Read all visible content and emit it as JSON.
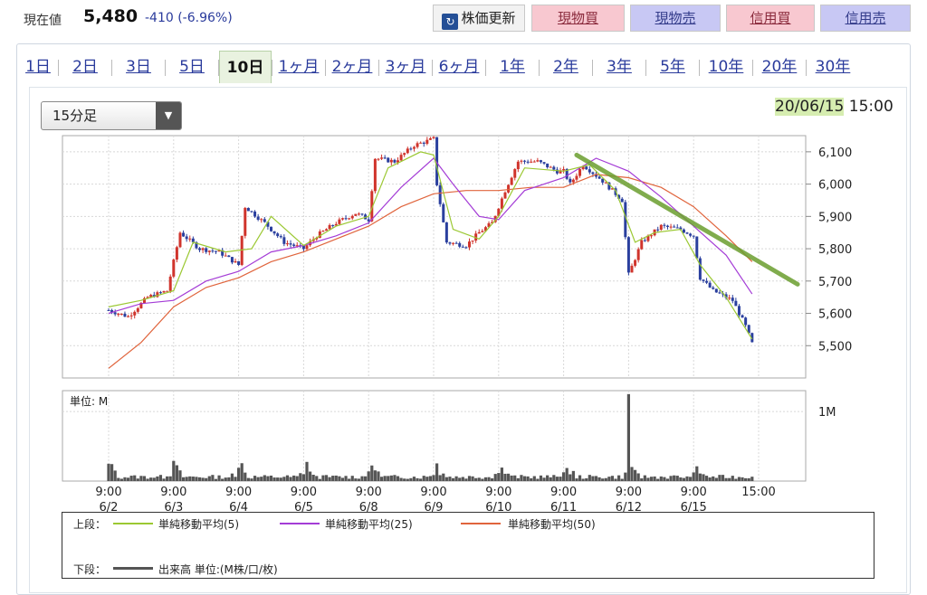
{
  "header": {
    "price_label": "現在値",
    "price_value": "5,480",
    "price_change": "-410 (-6.96%)",
    "refresh_label": "株価更新",
    "buttons": [
      "現物買",
      "現物売",
      "信用買",
      "信用売"
    ]
  },
  "tabs": [
    "1日",
    "2日",
    "3日",
    "5日",
    "10日",
    "1ヶ月",
    "2ヶ月",
    "3ヶ月",
    "6ヶ月",
    "1年",
    "2年",
    "3年",
    "5年",
    "10年",
    "20年",
    "30年"
  ],
  "selected_tab": "10日",
  "interval_select": "15分足",
  "datetime": {
    "date": "20/06/15",
    "time": "15:00"
  },
  "colors": {
    "up_candle": "#d0342c",
    "down_candle": "#2a3f9e",
    "sma5": "#9bc832",
    "sma25": "#a43cd6",
    "sma50": "#e0643c",
    "volume": "#555555",
    "trendline": "#6b9e2e"
  },
  "chart_data": [
    {
      "type": "candlestick",
      "x_ticks": [
        {
          "time": "9:00",
          "date": "6/2"
        },
        {
          "time": "9:00",
          "date": "6/3"
        },
        {
          "time": "9:00",
          "date": "6/4"
        },
        {
          "time": "9:00",
          "date": "6/5"
        },
        {
          "time": "9:00",
          "date": "6/8"
        },
        {
          "time": "9:00",
          "date": "6/9"
        },
        {
          "time": "9:00",
          "date": "6/10"
        },
        {
          "time": "9:00",
          "date": "6/11"
        },
        {
          "time": "9:00",
          "date": "6/12"
        },
        {
          "time": "9:00",
          "date": "6/15"
        },
        {
          "time": "15:00",
          "date": ""
        }
      ],
      "y_ticks": [
        "6,100",
        "6,000",
        "5,900",
        "5,800",
        "5,700",
        "5,600",
        "5,500"
      ],
      "y_tick_values": [
        6100,
        6000,
        5900,
        5800,
        5700,
        5600,
        5500
      ],
      "ylim": [
        5400,
        6150
      ],
      "close_path": [
        [
          0,
          5610
        ],
        [
          0.3,
          5590
        ],
        [
          0.6,
          5650
        ],
        [
          0.9,
          5670
        ],
        [
          1.1,
          5850
        ],
        [
          1.4,
          5800
        ],
        [
          1.7,
          5790
        ],
        [
          2.0,
          5750
        ],
        [
          2.1,
          5930
        ],
        [
          2.4,
          5880
        ],
        [
          2.7,
          5820
        ],
        [
          3.0,
          5800
        ],
        [
          3.2,
          5840
        ],
        [
          3.5,
          5880
        ],
        [
          3.8,
          5910
        ],
        [
          4.0,
          5890
        ],
        [
          4.1,
          6080
        ],
        [
          4.4,
          6070
        ],
        [
          4.7,
          6120
        ],
        [
          5.0,
          6140
        ],
        [
          5.05,
          6000
        ],
        [
          5.2,
          5820
        ],
        [
          5.5,
          5810
        ],
        [
          5.7,
          5850
        ],
        [
          5.9,
          5880
        ],
        [
          6.1,
          5980
        ],
        [
          6.3,
          6070
        ],
        [
          6.6,
          6070
        ],
        [
          6.9,
          6040
        ],
        [
          7.0,
          6040
        ],
        [
          7.1,
          6000
        ],
        [
          7.3,
          6060
        ],
        [
          7.6,
          6010
        ],
        [
          7.9,
          5950
        ],
        [
          8.0,
          5720
        ],
        [
          8.2,
          5820
        ],
        [
          8.5,
          5870
        ],
        [
          8.8,
          5860
        ],
        [
          9.0,
          5840
        ],
        [
          9.1,
          5710
        ],
        [
          9.3,
          5670
        ],
        [
          9.6,
          5640
        ],
        [
          9.8,
          5560
        ],
        [
          9.95,
          5480
        ]
      ],
      "sma5": [
        [
          0,
          5620
        ],
        [
          0.5,
          5640
        ],
        [
          1.0,
          5670
        ],
        [
          1.3,
          5820
        ],
        [
          1.8,
          5790
        ],
        [
          2.2,
          5800
        ],
        [
          2.5,
          5900
        ],
        [
          3.0,
          5810
        ],
        [
          3.5,
          5870
        ],
        [
          4.0,
          5900
        ],
        [
          4.3,
          6050
        ],
        [
          4.8,
          6100
        ],
        [
          5.0,
          6090
        ],
        [
          5.3,
          5860
        ],
        [
          5.7,
          5830
        ],
        [
          6.0,
          5900
        ],
        [
          6.4,
          6050
        ],
        [
          7.0,
          6040
        ],
        [
          7.4,
          6060
        ],
        [
          7.8,
          5980
        ],
        [
          8.1,
          5820
        ],
        [
          8.4,
          5850
        ],
        [
          8.8,
          5860
        ],
        [
          9.1,
          5750
        ],
        [
          9.5,
          5650
        ],
        [
          9.9,
          5520
        ]
      ],
      "sma25": [
        [
          0,
          5600
        ],
        [
          0.5,
          5630
        ],
        [
          1.0,
          5640
        ],
        [
          1.5,
          5700
        ],
        [
          2.0,
          5730
        ],
        [
          2.5,
          5790
        ],
        [
          3.0,
          5810
        ],
        [
          3.5,
          5840
        ],
        [
          4.0,
          5880
        ],
        [
          4.5,
          5990
        ],
        [
          5.0,
          6080
        ],
        [
          5.3,
          6000
        ],
        [
          5.7,
          5900
        ],
        [
          6.0,
          5890
        ],
        [
          6.4,
          5980
        ],
        [
          7.0,
          6020
        ],
        [
          7.5,
          6080
        ],
        [
          8.0,
          6040
        ],
        [
          8.5,
          5960
        ],
        [
          9.0,
          5870
        ],
        [
          9.5,
          5780
        ],
        [
          9.9,
          5660
        ]
      ],
      "sma50": [
        [
          0,
          5430
        ],
        [
          0.5,
          5510
        ],
        [
          1.0,
          5620
        ],
        [
          1.5,
          5680
        ],
        [
          2.0,
          5710
        ],
        [
          2.5,
          5760
        ],
        [
          3.0,
          5790
        ],
        [
          3.5,
          5830
        ],
        [
          4.0,
          5870
        ],
        [
          4.5,
          5930
        ],
        [
          5.0,
          5970
        ],
        [
          5.5,
          5980
        ],
        [
          6.0,
          5980
        ],
        [
          6.5,
          5990
        ],
        [
          7.0,
          5990
        ],
        [
          7.5,
          6030
        ],
        [
          8.0,
          6020
        ],
        [
          8.5,
          5990
        ],
        [
          9.0,
          5930
        ],
        [
          9.5,
          5840
        ],
        [
          9.9,
          5760
        ]
      ],
      "trendline": [
        [
          7.2,
          6090
        ],
        [
          10.6,
          5690
        ]
      ]
    },
    {
      "type": "bar",
      "title": "単位: M",
      "y_ticks": [
        "1M"
      ],
      "y_tick_values": [
        1
      ],
      "ylim": [
        0,
        1.3
      ],
      "spike_days": [
        0,
        1,
        2,
        3,
        4,
        5,
        6,
        7,
        8,
        9
      ],
      "largest_spike": {
        "day": 8,
        "value": 1.25
      }
    }
  ],
  "legend": {
    "upper_label": "上段：",
    "lower_label": "下段：",
    "sma5": "単純移動平均(5)",
    "sma25": "単純移動平均(25)",
    "sma50": "単純移動平均(50)",
    "volume": "出来高 単位:(M株/口/枚)"
  }
}
